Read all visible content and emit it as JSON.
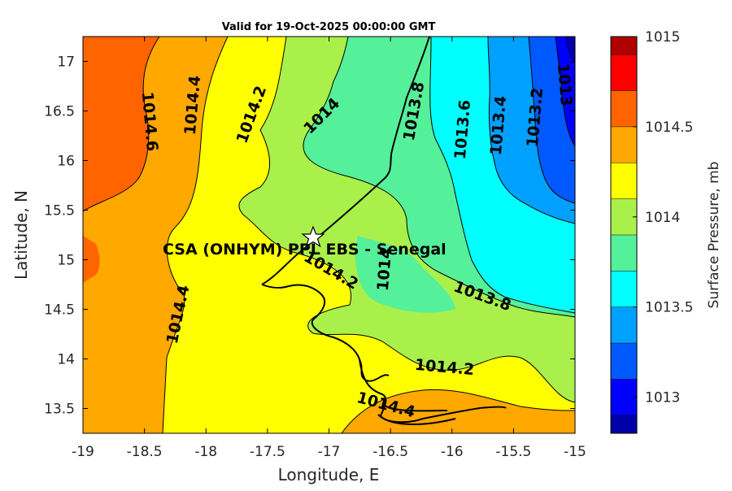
{
  "title": "Valid for 19-Oct-2025 00:00:00 GMT",
  "axes": {
    "xlabel": "Longitude, E",
    "ylabel": "Latitude, N",
    "xlim": [
      -19,
      -15
    ],
    "ylim": [
      13.25,
      17.25
    ],
    "xticks": [
      "-19",
      "-18.5",
      "-18",
      "-17.5",
      "-17",
      "-16.5",
      "-16",
      "-15.5",
      "-15"
    ],
    "yticks": [
      "13.5",
      "14",
      "14.5",
      "15",
      "15.5",
      "16",
      "16.5",
      "17"
    ]
  },
  "station": {
    "label": "CSA (ONHYM) PPL EBS - Senegal",
    "lon": -17.12,
    "lat": 15.22
  },
  "colorbar": {
    "label": "Surface Pressure, mb",
    "ticks": [
      "1013",
      "1013.5",
      "1014",
      "1014.5",
      "1015"
    ],
    "levels": [
      1012.8,
      1012.9,
      1013.1,
      1013.3,
      1013.5,
      1013.7,
      1013.9,
      1014.1,
      1014.3,
      1014.5,
      1014.7,
      1014.9,
      1015.0
    ],
    "colors": [
      "#0000a8",
      "#0000ff",
      "#0059ff",
      "#00a0ff",
      "#00ffff",
      "#55f09a",
      "#aaf04a",
      "#ffff00",
      "#ffa800",
      "#ff6400",
      "#ff0000",
      "#b00000"
    ]
  },
  "contour_labels": [
    "1014.6",
    "1014.4",
    "1014.2",
    "1014",
    "1013.8",
    "1013.6",
    "1013.4",
    "1013.2",
    "1013",
    "1014.2",
    "1014",
    "1013.8",
    "1014.4",
    "1014.2",
    "1014.4"
  ]
}
